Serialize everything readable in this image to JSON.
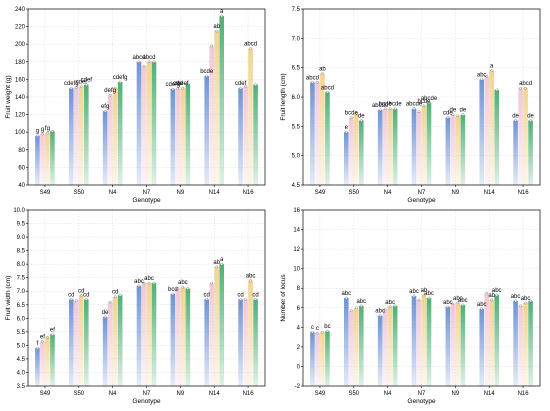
{
  "chart_data": [
    {
      "type": "bar",
      "xlabel": "Genotype",
      "ylabel": "Fruit weight (g)",
      "ylim": [
        40,
        240
      ],
      "yticks": [
        40,
        60,
        80,
        100,
        120,
        140,
        160,
        180,
        200,
        220,
        240
      ],
      "grid": true,
      "categories": [
        "S49",
        "S50",
        "N4",
        "N7",
        "N9",
        "N14",
        "N16"
      ],
      "series": [
        {
          "color": "#6f93d6",
          "values": [
            96,
            150,
            124,
            180,
            149,
            164,
            150
          ]
        },
        {
          "color": "#f0c8d8",
          "values": [
            98,
            151,
            142,
            175,
            150,
            198,
            152
          ]
        },
        {
          "color": "#f3d38e",
          "values": [
            99,
            152,
            150,
            180,
            150,
            215,
            195
          ]
        },
        {
          "color": "#4fb075",
          "values": [
            101,
            154,
            157,
            180,
            155,
            232,
            154
          ]
        }
      ],
      "labels": [
        [
          "g",
          "cdefg",
          "efg",
          "abcd",
          "cdefg",
          "bcde",
          "cdef"
        ],
        [
          "g",
          "",
          "defg",
          "",
          "cde",
          "",
          ""
        ],
        [
          "fg",
          "cdef",
          "",
          "abcd",
          "cdef",
          "ab",
          "abcd"
        ],
        [
          "",
          "cdef",
          "cdefg",
          "",
          "",
          "a",
          ""
        ]
      ]
    },
    {
      "type": "bar",
      "xlabel": "Genotype",
      "ylabel": "Fruit length (cm)",
      "ylim": [
        4.5,
        7.5
      ],
      "yticks": [
        4.5,
        5.0,
        5.5,
        6.0,
        6.5,
        7.0,
        7.5
      ],
      "grid": true,
      "categories": [
        "S49",
        "S50",
        "N4",
        "N7",
        "N9",
        "N14",
        "N16"
      ],
      "series": [
        {
          "color": "#6f93d6",
          "values": [
            6.25,
            5.4,
            5.78,
            5.8,
            5.65,
            6.3,
            5.6
          ]
        },
        {
          "color": "#f0c8d8",
          "values": [
            6.25,
            5.65,
            5.8,
            5.75,
            5.7,
            6.35,
            6.15
          ]
        },
        {
          "color": "#f3d38e",
          "values": [
            6.4,
            5.72,
            5.8,
            5.85,
            5.68,
            6.45,
            6.15
          ]
        },
        {
          "color": "#4fb075",
          "values": [
            6.08,
            5.6,
            5.8,
            5.9,
            5.7,
            6.12,
            5.6
          ]
        }
      ],
      "labels": [
        [
          "abcd",
          "e",
          "abcde",
          "abcde",
          "cde",
          "abc",
          "de"
        ],
        [
          "",
          "bcde",
          "bcde",
          "",
          "de",
          "",
          ""
        ],
        [
          "ab",
          "",
          "",
          "bcde",
          "",
          "a",
          "abcd"
        ],
        [
          "abcd",
          "de",
          "bcde",
          "abcde",
          "de",
          "",
          "de"
        ]
      ]
    },
    {
      "type": "bar",
      "xlabel": "Genotype",
      "ylabel": "Fruit width (cm)",
      "ylim": [
        3.5,
        10.0
      ],
      "yticks": [
        3.5,
        4.0,
        4.5,
        5.0,
        5.5,
        6.0,
        6.5,
        7.0,
        7.5,
        8.0,
        8.5,
        9.0,
        9.5,
        10.0
      ],
      "grid": true,
      "categories": [
        "S49",
        "S50",
        "N4",
        "N7",
        "N9",
        "N14",
        "N16"
      ],
      "series": [
        {
          "color": "#6f93d6",
          "values": [
            4.9,
            6.7,
            6.05,
            7.2,
            6.9,
            6.7,
            6.7
          ]
        },
        {
          "color": "#f0c8d8",
          "values": [
            5.15,
            6.65,
            6.6,
            7.3,
            7.1,
            7.3,
            6.7
          ]
        },
        {
          "color": "#f3d38e",
          "values": [
            5.3,
            6.85,
            6.8,
            7.3,
            7.15,
            7.9,
            7.4
          ]
        },
        {
          "color": "#4fb075",
          "values": [
            5.4,
            6.7,
            6.85,
            7.3,
            7.1,
            8.0,
            6.7
          ]
        }
      ],
      "labels": [
        [
          "f",
          "cd",
          "de",
          "abc",
          "bcd",
          "cd",
          "cd"
        ],
        [
          "ef",
          "",
          "",
          "",
          "",
          "",
          ""
        ],
        [
          "",
          "cd",
          "cd",
          "abc",
          "abc",
          "ab",
          "abc"
        ],
        [
          "ef",
          "cd",
          "",
          "",
          "",
          "a",
          "cd"
        ]
      ]
    },
    {
      "type": "bar",
      "xlabel": "Genotype",
      "ylabel": "Number of locus",
      "ylim": [
        -2,
        16
      ],
      "yticks": [
        -2,
        0,
        2,
        4,
        6,
        8,
        10,
        12,
        14,
        16
      ],
      "grid": true,
      "categories": [
        "S49",
        "S50",
        "N4",
        "N7",
        "N9",
        "N14",
        "N16"
      ],
      "series": [
        {
          "color": "#6f93d6",
          "values": [
            3.5,
            7.0,
            5.2,
            7.2,
            6.1,
            5.9,
            6.7
          ]
        },
        {
          "color": "#f0c8d8",
          "values": [
            3.4,
            5.7,
            5.8,
            6.8,
            6.4,
            7.5,
            6.2
          ]
        },
        {
          "color": "#f3d38e",
          "values": [
            3.5,
            6.0,
            6.1,
            7.3,
            6.5,
            6.8,
            6.5
          ]
        },
        {
          "color": "#4fb075",
          "values": [
            3.6,
            6.2,
            6.2,
            7.0,
            6.3,
            7.3,
            6.7
          ]
        }
      ],
      "labels": [
        [
          "c",
          "abc",
          "abc",
          "abc",
          "abc",
          "abc",
          "abc"
        ],
        [
          "c",
          "",
          "",
          "",
          "",
          "",
          ""
        ],
        [
          "",
          "",
          "abc",
          "ab",
          "abc",
          "ab",
          "abc"
        ],
        [
          "bc",
          "abc",
          "",
          "abc",
          "abc",
          "abc",
          ""
        ]
      ]
    }
  ]
}
